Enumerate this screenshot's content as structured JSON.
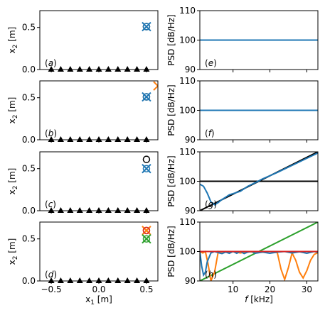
{
  "chart_data": [
    {
      "panel": "(a)",
      "type": "scatter",
      "xlabel": "",
      "ylabel": "x_2 [m]",
      "xlim": [
        -0.62,
        0.62
      ],
      "ylim": [
        0.0,
        0.7
      ],
      "yticks": [
        0.0,
        0.5
      ],
      "ytick_labels": [
        "0.0",
        "0.5"
      ],
      "series": [
        {
          "marker": "triangle",
          "color": "#000000",
          "x": [
            -0.5,
            -0.4,
            -0.3,
            -0.2,
            -0.1,
            0.0,
            0.1,
            0.2,
            0.3,
            0.4,
            0.5
          ],
          "y": [
            0,
            0,
            0,
            0,
            0,
            0,
            0,
            0,
            0,
            0,
            0
          ]
        },
        {
          "marker": "circle-open",
          "color": "#000000",
          "x": [
            0.5
          ],
          "y": [
            0.51
          ]
        },
        {
          "marker": "x",
          "color": "#1f77b4",
          "x": [
            0.5
          ],
          "y": [
            0.51
          ]
        },
        {
          "marker": "circle-open",
          "color": "#1f77b4",
          "x": [
            0.5
          ],
          "y": [
            0.51
          ]
        }
      ]
    },
    {
      "panel": "(b)",
      "type": "scatter",
      "xlabel": "",
      "ylabel": "x_2 [m]",
      "xlim": [
        -0.62,
        0.62
      ],
      "ylim": [
        0.0,
        0.7
      ],
      "yticks": [
        0.0,
        0.5
      ],
      "ytick_labels": [
        "0.0",
        "0.5"
      ],
      "series": [
        {
          "marker": "triangle",
          "color": "#000000",
          "x": [
            -0.5,
            -0.4,
            -0.3,
            -0.2,
            -0.1,
            0.0,
            0.1,
            0.2,
            0.3,
            0.4,
            0.5
          ],
          "y": [
            0,
            0,
            0,
            0,
            0,
            0,
            0,
            0,
            0,
            0,
            0
          ]
        },
        {
          "marker": "circle-open",
          "color": "#000000",
          "x": [
            0.5
          ],
          "y": [
            0.51
          ]
        },
        {
          "marker": "x",
          "color": "#1f77b4",
          "x": [
            0.5
          ],
          "y": [
            0.51
          ]
        },
        {
          "marker": "circle-open",
          "color": "#1f77b4",
          "x": [
            0.5
          ],
          "y": [
            0.51
          ]
        },
        {
          "marker": "x",
          "color": "#ff7f0e",
          "x": [
            0.62
          ],
          "y": [
            0.64
          ]
        }
      ]
    },
    {
      "panel": "(c)",
      "type": "scatter",
      "xlabel": "",
      "ylabel": "x_2 [m]",
      "xlim": [
        -0.62,
        0.62
      ],
      "ylim": [
        0.0,
        0.7
      ],
      "yticks": [
        0.0,
        0.5
      ],
      "ytick_labels": [
        "0.0",
        "0.5"
      ],
      "series": [
        {
          "marker": "triangle",
          "color": "#000000",
          "x": [
            -0.5,
            -0.4,
            -0.3,
            -0.2,
            -0.1,
            0.0,
            0.1,
            0.2,
            0.3,
            0.4,
            0.5
          ],
          "y": [
            0,
            0,
            0,
            0,
            0,
            0,
            0,
            0,
            0,
            0,
            0
          ]
        },
        {
          "marker": "circle-open",
          "color": "#000000",
          "x": [
            0.5
          ],
          "y": [
            0.61
          ]
        },
        {
          "marker": "x",
          "color": "#1f77b4",
          "x": [
            0.5
          ],
          "y": [
            0.5
          ]
        },
        {
          "marker": "circle-open",
          "color": "#1f77b4",
          "x": [
            0.5
          ],
          "y": [
            0.5
          ]
        }
      ]
    },
    {
      "panel": "(d)",
      "type": "scatter",
      "xlabel": "x_1 [m]",
      "ylabel": "x_2 [m]",
      "xlim": [
        -0.62,
        0.62
      ],
      "ylim": [
        0.0,
        0.7
      ],
      "xticks": [
        -0.5,
        0.0,
        0.5
      ],
      "xtick_labels": [
        "−0.5",
        "0.0",
        "0.5"
      ],
      "yticks": [
        0.0,
        0.5
      ],
      "ytick_labels": [
        "0.0",
        "0.5"
      ],
      "series": [
        {
          "marker": "triangle",
          "color": "#000000",
          "x": [
            -0.5,
            -0.4,
            -0.3,
            -0.2,
            -0.1,
            0.0,
            0.1,
            0.2,
            0.3,
            0.4,
            0.5
          ],
          "y": [
            0,
            0,
            0,
            0,
            0,
            0,
            0,
            0,
            0,
            0,
            0
          ]
        },
        {
          "marker": "x",
          "color": "#ff7f0e",
          "x": [
            0.5
          ],
          "y": [
            0.6
          ]
        },
        {
          "marker": "circle-open",
          "color": "#ff7f0e",
          "x": [
            0.5
          ],
          "y": [
            0.6
          ]
        },
        {
          "marker": "x",
          "color": "#2ca02c",
          "x": [
            0.5
          ],
          "y": [
            0.5
          ]
        },
        {
          "marker": "circle-open",
          "color": "#2ca02c",
          "x": [
            0.5
          ],
          "y": [
            0.5
          ]
        },
        {
          "marker": "circle-open",
          "color": "#d62728",
          "x": [
            0.5
          ],
          "y": [
            0.6
          ]
        }
      ]
    },
    {
      "panel": "(e)",
      "type": "line",
      "xlabel": "",
      "ylabel": "PSD [dB/Hz]",
      "xlim": [
        1,
        33
      ],
      "ylim": [
        90,
        110
      ],
      "yticks": [
        90,
        100,
        110
      ],
      "ytick_labels": [
        "90",
        "100",
        "110"
      ],
      "series": [
        {
          "color": "#1f77b4",
          "x": [
            1,
            33
          ],
          "y": [
            100,
            100
          ]
        }
      ]
    },
    {
      "panel": "(f)",
      "type": "line",
      "xlabel": "",
      "ylabel": "PSD [dB/Hz]",
      "xlim": [
        1,
        33
      ],
      "ylim": [
        90,
        110
      ],
      "yticks": [
        90,
        100,
        110
      ],
      "ytick_labels": [
        "90",
        "100",
        "110"
      ],
      "series": [
        {
          "color": "#1f77b4",
          "x": [
            1,
            33
          ],
          "y": [
            100,
            100
          ]
        }
      ]
    },
    {
      "panel": "(g)",
      "type": "line",
      "xlabel": "",
      "ylabel": "PSD [dB/Hz]",
      "xlim": [
        1,
        33
      ],
      "ylim": [
        90,
        110
      ],
      "yticks": [
        90,
        100,
        110
      ],
      "ytick_labels": [
        "90",
        "100",
        "110"
      ],
      "series": [
        {
          "color": "#000000",
          "x": [
            1,
            33
          ],
          "y": [
            100,
            100
          ]
        },
        {
          "color": "#000000",
          "x": [
            1,
            33
          ],
          "y": [
            90,
            110
          ]
        },
        {
          "color": "#1f77b4",
          "x": [
            1,
            2,
            3,
            4,
            5,
            6,
            7,
            8,
            9,
            10,
            12,
            14,
            16,
            18,
            20,
            22,
            24,
            26,
            28,
            30,
            33
          ],
          "y": [
            99,
            98.3,
            96,
            93,
            92,
            92.8,
            93.8,
            94.6,
            95.4,
            95.8,
            96.6,
            98.3,
            99.5,
            100.8,
            101.9,
            103,
            104.2,
            105.4,
            106.6,
            107.8,
            109.6
          ]
        }
      ]
    },
    {
      "panel": "(h)",
      "type": "line",
      "xlabel": "f [kHz]",
      "ylabel": "PSD [dB/Hz]",
      "xlim": [
        1,
        33
      ],
      "ylim": [
        90,
        110
      ],
      "xticks": [
        10,
        20,
        30
      ],
      "xtick_labels": [
        "10",
        "20",
        "30"
      ],
      "yticks": [
        90,
        100,
        110
      ],
      "ytick_labels": [
        "90",
        "100",
        "110"
      ],
      "series": [
        {
          "color": "#2ca02c",
          "x": [
            1,
            33
          ],
          "y": [
            90,
            110
          ]
        },
        {
          "color": "#ff7f0e",
          "x": [
            1,
            1.8,
            2.5,
            3.2,
            4,
            5,
            6,
            7,
            8,
            9,
            10,
            12,
            14,
            16,
            18,
            20,
            22,
            23,
            24,
            25,
            26,
            27,
            28,
            29,
            30,
            31,
            32,
            33
          ],
          "y": [
            100,
            99.5,
            100,
            96,
            90,
            93,
            100,
            99.4,
            100,
            99.6,
            100,
            99.5,
            100,
            99.7,
            100,
            100,
            99.6,
            94,
            90.5,
            94.5,
            99.5,
            97,
            93,
            91,
            93.5,
            97,
            99,
            99.6
          ]
        },
        {
          "color": "#1f77b4",
          "x": [
            1,
            1.5,
            2,
            2.5,
            3,
            4,
            5,
            6,
            7,
            8,
            9,
            10,
            11,
            12,
            13,
            14,
            15,
            16,
            18,
            20,
            22,
            24,
            26,
            28,
            30,
            32,
            33
          ],
          "y": [
            100,
            95,
            92,
            93,
            96.5,
            99.5,
            100,
            99.6,
            99.3,
            99.8,
            99.4,
            100,
            99.4,
            100,
            99.3,
            99.8,
            100,
            99.4,
            99.8,
            99.4,
            99.8,
            100,
            99.5,
            99.9,
            99.4,
            100,
            99.7
          ]
        },
        {
          "color": "#d62728",
          "x": [
            1,
            33
          ],
          "y": [
            100,
            100
          ]
        }
      ]
    }
  ]
}
